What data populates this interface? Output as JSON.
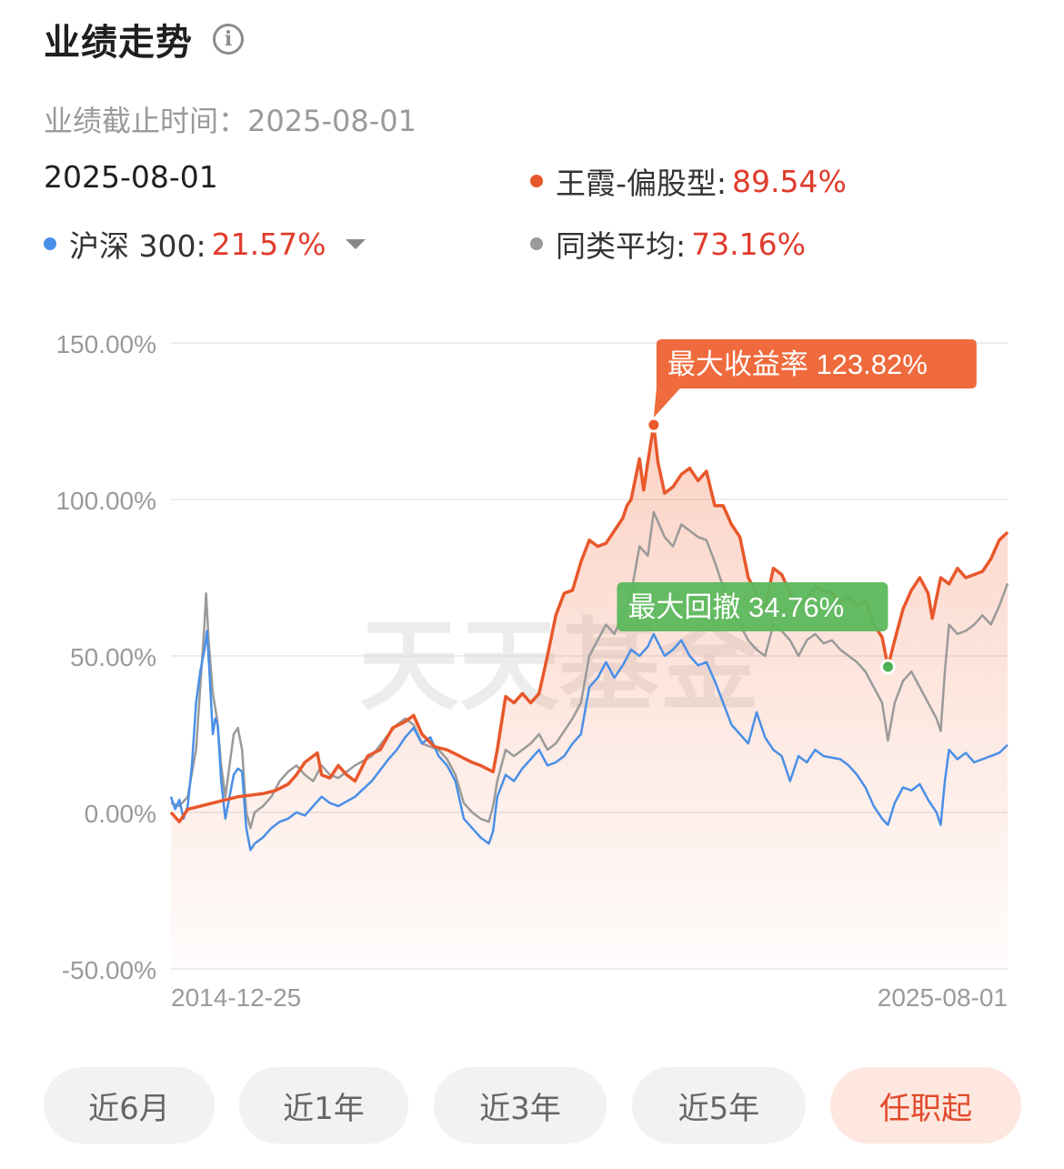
{
  "header": {
    "title": "业绩走势",
    "info_icon": "info-icon"
  },
  "subtitle": "业绩截止时间：2025-08-01",
  "current_date": "2025-08-01",
  "legend": [
    {
      "name": "王霞-偏股型:",
      "value": "89.54%",
      "color": "#e8582b"
    },
    {
      "name": "沪深 300:",
      "value": "21.57%",
      "color": "#4a8fe7"
    },
    {
      "name": "同类平均:",
      "value": "73.16%",
      "color": "#9a9a9a"
    }
  ],
  "chart_data": {
    "type": "line",
    "y_ticks": [
      "150.00%",
      "100.00%",
      "50.00%",
      "0.00%",
      "-50.00%"
    ],
    "ylim": [
      -50,
      150
    ],
    "x_labels": [
      "2014-12-25",
      "2025-08-01"
    ],
    "watermark": "天天基金",
    "annotations": {
      "max_return": {
        "label": "最大收益率 123.82%",
        "value": 123.82,
        "t": 0.577
      },
      "max_drawdown": {
        "label": "最大回撤 34.76%",
        "value": 46.5,
        "t": 0.857
      }
    },
    "series": [
      {
        "name": "王霞-偏股型",
        "color": "#e8582b",
        "points": [
          [
            0,
            0
          ],
          [
            0.01,
            -3
          ],
          [
            0.02,
            1
          ],
          [
            0.05,
            3
          ],
          [
            0.08,
            5
          ],
          [
            0.11,
            6
          ],
          [
            0.125,
            7
          ],
          [
            0.14,
            9
          ],
          [
            0.15,
            12
          ],
          [
            0.16,
            16
          ],
          [
            0.175,
            19
          ],
          [
            0.18,
            12
          ],
          [
            0.19,
            11
          ],
          [
            0.2,
            15
          ],
          [
            0.21,
            12
          ],
          [
            0.22,
            10
          ],
          [
            0.235,
            18
          ],
          [
            0.25,
            20
          ],
          [
            0.265,
            27
          ],
          [
            0.28,
            29
          ],
          [
            0.29,
            31
          ],
          [
            0.3,
            25
          ],
          [
            0.315,
            21
          ],
          [
            0.33,
            20
          ],
          [
            0.345,
            18
          ],
          [
            0.36,
            16
          ],
          [
            0.37,
            15
          ],
          [
            0.385,
            13
          ],
          [
            0.39,
            20
          ],
          [
            0.4,
            37
          ],
          [
            0.41,
            35
          ],
          [
            0.42,
            38
          ],
          [
            0.43,
            35
          ],
          [
            0.44,
            38
          ],
          [
            0.45,
            50
          ],
          [
            0.46,
            63
          ],
          [
            0.47,
            70
          ],
          [
            0.48,
            71
          ],
          [
            0.49,
            80
          ],
          [
            0.5,
            87
          ],
          [
            0.51,
            85
          ],
          [
            0.52,
            86
          ],
          [
            0.53,
            90
          ],
          [
            0.54,
            94
          ],
          [
            0.545,
            98
          ],
          [
            0.55,
            100
          ],
          [
            0.56,
            113
          ],
          [
            0.565,
            103
          ],
          [
            0.57,
            112
          ],
          [
            0.577,
            123.82
          ],
          [
            0.582,
            112
          ],
          [
            0.59,
            102
          ],
          [
            0.6,
            104
          ],
          [
            0.61,
            108
          ],
          [
            0.62,
            110
          ],
          [
            0.63,
            106
          ],
          [
            0.64,
            109
          ],
          [
            0.65,
            98
          ],
          [
            0.66,
            98
          ],
          [
            0.67,
            92
          ],
          [
            0.68,
            88
          ],
          [
            0.69,
            75
          ],
          [
            0.7,
            70
          ],
          [
            0.71,
            65
          ],
          [
            0.72,
            78
          ],
          [
            0.73,
            76
          ],
          [
            0.74,
            70
          ],
          [
            0.75,
            66
          ],
          [
            0.76,
            68
          ],
          [
            0.77,
            72
          ],
          [
            0.78,
            71
          ],
          [
            0.79,
            70
          ],
          [
            0.8,
            67
          ],
          [
            0.81,
            69
          ],
          [
            0.82,
            66
          ],
          [
            0.83,
            68
          ],
          [
            0.84,
            60
          ],
          [
            0.85,
            56
          ],
          [
            0.857,
            46.5
          ],
          [
            0.865,
            55
          ],
          [
            0.875,
            65
          ],
          [
            0.885,
            71
          ],
          [
            0.895,
            75
          ],
          [
            0.905,
            70
          ],
          [
            0.91,
            62
          ],
          [
            0.92,
            75
          ],
          [
            0.93,
            73
          ],
          [
            0.94,
            78
          ],
          [
            0.95,
            75
          ],
          [
            0.96,
            76
          ],
          [
            0.97,
            77
          ],
          [
            0.98,
            81
          ],
          [
            0.99,
            87
          ],
          [
            1,
            89.54
          ]
        ]
      },
      {
        "name": "沪深 300",
        "color": "#4a8fe7",
        "points": [
          [
            0,
            5
          ],
          [
            0.005,
            1
          ],
          [
            0.01,
            4
          ],
          [
            0.015,
            -2
          ],
          [
            0.02,
            2
          ],
          [
            0.025,
            15
          ],
          [
            0.03,
            35
          ],
          [
            0.035,
            45
          ],
          [
            0.04,
            52
          ],
          [
            0.043,
            58
          ],
          [
            0.046,
            45
          ],
          [
            0.05,
            25
          ],
          [
            0.053,
            30
          ],
          [
            0.056,
            28
          ],
          [
            0.06,
            10
          ],
          [
            0.065,
            -2
          ],
          [
            0.07,
            5
          ],
          [
            0.075,
            12
          ],
          [
            0.08,
            14
          ],
          [
            0.085,
            13
          ],
          [
            0.09,
            -5
          ],
          [
            0.095,
            -12
          ],
          [
            0.1,
            -10
          ],
          [
            0.11,
            -8
          ],
          [
            0.12,
            -5
          ],
          [
            0.13,
            -3
          ],
          [
            0.14,
            -2
          ],
          [
            0.15,
            0
          ],
          [
            0.16,
            -1
          ],
          [
            0.17,
            2
          ],
          [
            0.18,
            5
          ],
          [
            0.19,
            3
          ],
          [
            0.2,
            2
          ],
          [
            0.22,
            5
          ],
          [
            0.24,
            10
          ],
          [
            0.26,
            17
          ],
          [
            0.27,
            20
          ],
          [
            0.28,
            24
          ],
          [
            0.29,
            27
          ],
          [
            0.3,
            22
          ],
          [
            0.31,
            24
          ],
          [
            0.32,
            18
          ],
          [
            0.33,
            15
          ],
          [
            0.34,
            10
          ],
          [
            0.35,
            -2
          ],
          [
            0.36,
            -5
          ],
          [
            0.37,
            -8
          ],
          [
            0.38,
            -10
          ],
          [
            0.385,
            -6
          ],
          [
            0.39,
            5
          ],
          [
            0.4,
            12
          ],
          [
            0.41,
            10
          ],
          [
            0.42,
            14
          ],
          [
            0.43,
            17
          ],
          [
            0.44,
            20
          ],
          [
            0.45,
            15
          ],
          [
            0.46,
            16
          ],
          [
            0.47,
            18
          ],
          [
            0.48,
            22
          ],
          [
            0.49,
            25
          ],
          [
            0.5,
            40
          ],
          [
            0.51,
            43
          ],
          [
            0.52,
            48
          ],
          [
            0.53,
            43
          ],
          [
            0.54,
            47
          ],
          [
            0.55,
            52
          ],
          [
            0.56,
            50
          ],
          [
            0.57,
            53
          ],
          [
            0.577,
            57
          ],
          [
            0.59,
            50
          ],
          [
            0.6,
            52
          ],
          [
            0.61,
            55
          ],
          [
            0.62,
            50
          ],
          [
            0.63,
            47
          ],
          [
            0.64,
            48
          ],
          [
            0.65,
            42
          ],
          [
            0.66,
            35
          ],
          [
            0.67,
            28
          ],
          [
            0.68,
            25
          ],
          [
            0.69,
            22
          ],
          [
            0.7,
            32
          ],
          [
            0.71,
            24
          ],
          [
            0.72,
            20
          ],
          [
            0.73,
            18
          ],
          [
            0.74,
            10
          ],
          [
            0.75,
            18
          ],
          [
            0.76,
            16
          ],
          [
            0.77,
            20
          ],
          [
            0.78,
            18
          ],
          [
            0.8,
            17
          ],
          [
            0.81,
            15
          ],
          [
            0.82,
            12
          ],
          [
            0.83,
            8
          ],
          [
            0.84,
            2
          ],
          [
            0.85,
            -2
          ],
          [
            0.857,
            -4
          ],
          [
            0.865,
            3
          ],
          [
            0.875,
            8
          ],
          [
            0.885,
            7
          ],
          [
            0.895,
            9
          ],
          [
            0.905,
            4
          ],
          [
            0.915,
            0
          ],
          [
            0.92,
            -4
          ],
          [
            0.925,
            10
          ],
          [
            0.93,
            20
          ],
          [
            0.94,
            17
          ],
          [
            0.95,
            19
          ],
          [
            0.96,
            16
          ],
          [
            0.97,
            17
          ],
          [
            0.98,
            18
          ],
          [
            0.99,
            19
          ],
          [
            1,
            21.57
          ]
        ]
      },
      {
        "name": "同类平均",
        "color": "#9a9a9a",
        "points": [
          [
            0,
            3
          ],
          [
            0.01,
            2
          ],
          [
            0.02,
            5
          ],
          [
            0.03,
            20
          ],
          [
            0.035,
            40
          ],
          [
            0.04,
            60
          ],
          [
            0.042,
            70
          ],
          [
            0.045,
            55
          ],
          [
            0.05,
            38
          ],
          [
            0.055,
            30
          ],
          [
            0.06,
            15
          ],
          [
            0.065,
            5
          ],
          [
            0.07,
            15
          ],
          [
            0.075,
            25
          ],
          [
            0.08,
            27
          ],
          [
            0.085,
            20
          ],
          [
            0.09,
            0
          ],
          [
            0.095,
            -5
          ],
          [
            0.1,
            0
          ],
          [
            0.11,
            2
          ],
          [
            0.12,
            5
          ],
          [
            0.13,
            10
          ],
          [
            0.14,
            13
          ],
          [
            0.15,
            15
          ],
          [
            0.16,
            12
          ],
          [
            0.17,
            10
          ],
          [
            0.18,
            15
          ],
          [
            0.19,
            12
          ],
          [
            0.2,
            11
          ],
          [
            0.22,
            15
          ],
          [
            0.24,
            18
          ],
          [
            0.26,
            25
          ],
          [
            0.27,
            28
          ],
          [
            0.28,
            30
          ],
          [
            0.29,
            28
          ],
          [
            0.3,
            22
          ],
          [
            0.32,
            20
          ],
          [
            0.33,
            17
          ],
          [
            0.34,
            12
          ],
          [
            0.35,
            3
          ],
          [
            0.36,
            0
          ],
          [
            0.37,
            -2
          ],
          [
            0.38,
            -3
          ],
          [
            0.385,
            2
          ],
          [
            0.39,
            10
          ],
          [
            0.4,
            20
          ],
          [
            0.41,
            18
          ],
          [
            0.42,
            20
          ],
          [
            0.43,
            22
          ],
          [
            0.44,
            25
          ],
          [
            0.45,
            20
          ],
          [
            0.46,
            22
          ],
          [
            0.47,
            26
          ],
          [
            0.48,
            30
          ],
          [
            0.49,
            35
          ],
          [
            0.5,
            50
          ],
          [
            0.51,
            55
          ],
          [
            0.52,
            60
          ],
          [
            0.53,
            57
          ],
          [
            0.54,
            63
          ],
          [
            0.55,
            70
          ],
          [
            0.56,
            85
          ],
          [
            0.57,
            82
          ],
          [
            0.577,
            96
          ],
          [
            0.59,
            88
          ],
          [
            0.6,
            85
          ],
          [
            0.61,
            92
          ],
          [
            0.62,
            90
          ],
          [
            0.63,
            88
          ],
          [
            0.64,
            87
          ],
          [
            0.65,
            80
          ],
          [
            0.66,
            72
          ],
          [
            0.67,
            65
          ],
          [
            0.68,
            60
          ],
          [
            0.69,
            55
          ],
          [
            0.7,
            52
          ],
          [
            0.71,
            50
          ],
          [
            0.72,
            60
          ],
          [
            0.73,
            58
          ],
          [
            0.74,
            55
          ],
          [
            0.75,
            50
          ],
          [
            0.76,
            55
          ],
          [
            0.77,
            57
          ],
          [
            0.78,
            54
          ],
          [
            0.79,
            55
          ],
          [
            0.8,
            52
          ],
          [
            0.81,
            50
          ],
          [
            0.82,
            48
          ],
          [
            0.83,
            45
          ],
          [
            0.84,
            40
          ],
          [
            0.85,
            35
          ],
          [
            0.857,
            23
          ],
          [
            0.865,
            35
          ],
          [
            0.875,
            42
          ],
          [
            0.885,
            45
          ],
          [
            0.895,
            40
          ],
          [
            0.905,
            35
          ],
          [
            0.915,
            30
          ],
          [
            0.92,
            26
          ],
          [
            0.925,
            45
          ],
          [
            0.93,
            60
          ],
          [
            0.94,
            57
          ],
          [
            0.95,
            58
          ],
          [
            0.96,
            60
          ],
          [
            0.97,
            63
          ],
          [
            0.98,
            60
          ],
          [
            0.99,
            66
          ],
          [
            1,
            73.16
          ]
        ]
      }
    ]
  },
  "ranges": [
    {
      "label": "近6月",
      "active": false
    },
    {
      "label": "近1年",
      "active": false
    },
    {
      "label": "近3年",
      "active": false
    },
    {
      "label": "近5年",
      "active": false
    },
    {
      "label": "任职起",
      "active": true
    }
  ]
}
